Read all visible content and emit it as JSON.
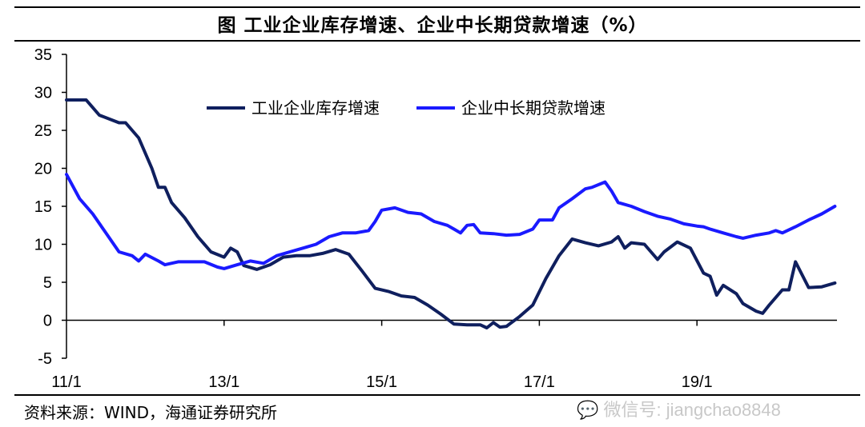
{
  "title": "图 工业企业库存增速、企业中长期贷款增速（%）",
  "source": "资料来源：WIND，海通证券研究所",
  "watermark": "微信号: jiangchao8848",
  "chart_data": {
    "type": "line",
    "title": "图 工业企业库存增速、企业中长期贷款增速（%）",
    "ylim": [
      -5,
      35
    ],
    "yticks": [
      -5,
      0,
      5,
      10,
      15,
      20,
      25,
      30,
      35
    ],
    "xticks": [
      "11/1",
      "13/1",
      "15/1",
      "17/1",
      "19/1"
    ],
    "xtick_dates": [
      "2011-01",
      "2013-01",
      "2015-01",
      "2017-01",
      "2019-01"
    ],
    "grid": false,
    "legend": "top-center",
    "series": [
      {
        "name": "工业企业库存增速",
        "color": "#0f1f5e",
        "points": [
          [
            "2011-01",
            29
          ],
          [
            "2011-04",
            29
          ],
          [
            "2011-06",
            27
          ],
          [
            "2011-09",
            26
          ],
          [
            "2011-10",
            26
          ],
          [
            "2011-12",
            24
          ],
          [
            "2012-02",
            20
          ],
          [
            "2012-03",
            17.5
          ],
          [
            "2012-04",
            17.5
          ],
          [
            "2012-05",
            15.5
          ],
          [
            "2012-07",
            13.5
          ],
          [
            "2012-09",
            11
          ],
          [
            "2012-11",
            9
          ],
          [
            "2013-01",
            8.3
          ],
          [
            "2013-02",
            9.5
          ],
          [
            "2013-03",
            9
          ],
          [
            "2013-04",
            7.2
          ],
          [
            "2013-06",
            6.7
          ],
          [
            "2013-08",
            7.3
          ],
          [
            "2013-10",
            8.3
          ],
          [
            "2013-12",
            8.5
          ],
          [
            "2014-02",
            8.5
          ],
          [
            "2014-04",
            8.8
          ],
          [
            "2014-06",
            9.3
          ],
          [
            "2014-08",
            8.7
          ],
          [
            "2014-10",
            6.5
          ],
          [
            "2014-12",
            4.2
          ],
          [
            "2015-02",
            3.8
          ],
          [
            "2015-04",
            3.2
          ],
          [
            "2015-06",
            3.0
          ],
          [
            "2015-08",
            2
          ],
          [
            "2015-10",
            0.8
          ],
          [
            "2015-12",
            -0.5
          ],
          [
            "2016-02",
            -0.6
          ],
          [
            "2016-04",
            -0.6
          ],
          [
            "2016-05",
            -1
          ],
          [
            "2016-06",
            -0.3
          ],
          [
            "2016-07",
            -0.9
          ],
          [
            "2016-08",
            -0.8
          ],
          [
            "2016-10",
            0.5
          ],
          [
            "2016-12",
            2
          ],
          [
            "2017-02",
            5.5
          ],
          [
            "2017-04",
            8.5
          ],
          [
            "2017-06",
            10.7
          ],
          [
            "2017-08",
            10.2
          ],
          [
            "2017-10",
            9.8
          ],
          [
            "2017-12",
            10.3
          ],
          [
            "2018-01",
            11
          ],
          [
            "2018-02",
            9.5
          ],
          [
            "2018-03",
            10.2
          ],
          [
            "2018-05",
            10
          ],
          [
            "2018-07",
            8
          ],
          [
            "2018-08",
            9
          ],
          [
            "2018-10",
            10.3
          ],
          [
            "2018-12",
            9.5
          ],
          [
            "2019-02",
            6.2
          ],
          [
            "2019-03",
            5.8
          ],
          [
            "2019-04",
            3.3
          ],
          [
            "2019-05",
            4.6
          ],
          [
            "2019-07",
            3.5
          ],
          [
            "2019-08",
            2.2
          ],
          [
            "2019-10",
            1.2
          ],
          [
            "2019-11",
            0.9
          ],
          [
            "2019-12",
            2
          ],
          [
            "2020-02",
            4
          ],
          [
            "2020-03",
            4
          ],
          [
            "2020-04",
            7.7
          ],
          [
            "2020-05",
            6
          ],
          [
            "2020-06",
            4.3
          ],
          [
            "2020-08",
            4.4
          ],
          [
            "2020-10",
            4.9
          ]
        ]
      },
      {
        "name": "企业中长期贷款增速",
        "color": "#1a1aff",
        "points": [
          [
            "2011-01",
            19.2
          ],
          [
            "2011-03",
            16
          ],
          [
            "2011-05",
            14
          ],
          [
            "2011-07",
            11.5
          ],
          [
            "2011-09",
            9
          ],
          [
            "2011-11",
            8.5
          ],
          [
            "2011-12",
            7.8
          ],
          [
            "2012-01",
            8.7
          ],
          [
            "2012-03",
            7.8
          ],
          [
            "2012-04",
            7.3
          ],
          [
            "2012-06",
            7.7
          ],
          [
            "2012-08",
            7.7
          ],
          [
            "2012-10",
            7.7
          ],
          [
            "2012-12",
            7
          ],
          [
            "2013-01",
            6.8
          ],
          [
            "2013-03",
            7.3
          ],
          [
            "2013-05",
            7.8
          ],
          [
            "2013-07",
            7.5
          ],
          [
            "2013-09",
            8.5
          ],
          [
            "2013-11",
            9
          ],
          [
            "2014-01",
            9.5
          ],
          [
            "2014-03",
            10
          ],
          [
            "2014-05",
            11
          ],
          [
            "2014-07",
            11.5
          ],
          [
            "2014-09",
            11.5
          ],
          [
            "2014-11",
            11.8
          ],
          [
            "2014-12",
            13
          ],
          [
            "2015-01",
            14.5
          ],
          [
            "2015-03",
            14.8
          ],
          [
            "2015-05",
            14.2
          ],
          [
            "2015-07",
            14
          ],
          [
            "2015-09",
            13
          ],
          [
            "2015-11",
            12.5
          ],
          [
            "2015-12",
            12
          ],
          [
            "2016-01",
            11.5
          ],
          [
            "2016-02",
            12.5
          ],
          [
            "2016-03",
            12.6
          ],
          [
            "2016-04",
            11.5
          ],
          [
            "2016-06",
            11.4
          ],
          [
            "2016-08",
            11.2
          ],
          [
            "2016-10",
            11.3
          ],
          [
            "2016-12",
            12
          ],
          [
            "2017-01",
            13.2
          ],
          [
            "2017-03",
            13.2
          ],
          [
            "2017-04",
            14.8
          ],
          [
            "2017-06",
            16
          ],
          [
            "2017-08",
            17.3
          ],
          [
            "2017-09",
            17.5
          ],
          [
            "2017-11",
            18.2
          ],
          [
            "2017-12",
            17
          ],
          [
            "2018-01",
            15.5
          ],
          [
            "2018-03",
            15
          ],
          [
            "2018-05",
            14.3
          ],
          [
            "2018-07",
            13.7
          ],
          [
            "2018-09",
            13.3
          ],
          [
            "2018-11",
            12.7
          ],
          [
            "2019-01",
            12.4
          ],
          [
            "2019-02",
            12.3
          ],
          [
            "2019-03",
            12
          ],
          [
            "2019-05",
            11.5
          ],
          [
            "2019-07",
            11
          ],
          [
            "2019-08",
            10.8
          ],
          [
            "2019-10",
            11.2
          ],
          [
            "2019-12",
            11.5
          ],
          [
            "2020-01",
            11.8
          ],
          [
            "2020-02",
            11.5
          ],
          [
            "2020-04",
            12.3
          ],
          [
            "2020-06",
            13.2
          ],
          [
            "2020-08",
            14
          ],
          [
            "2020-10",
            15
          ]
        ]
      }
    ]
  }
}
